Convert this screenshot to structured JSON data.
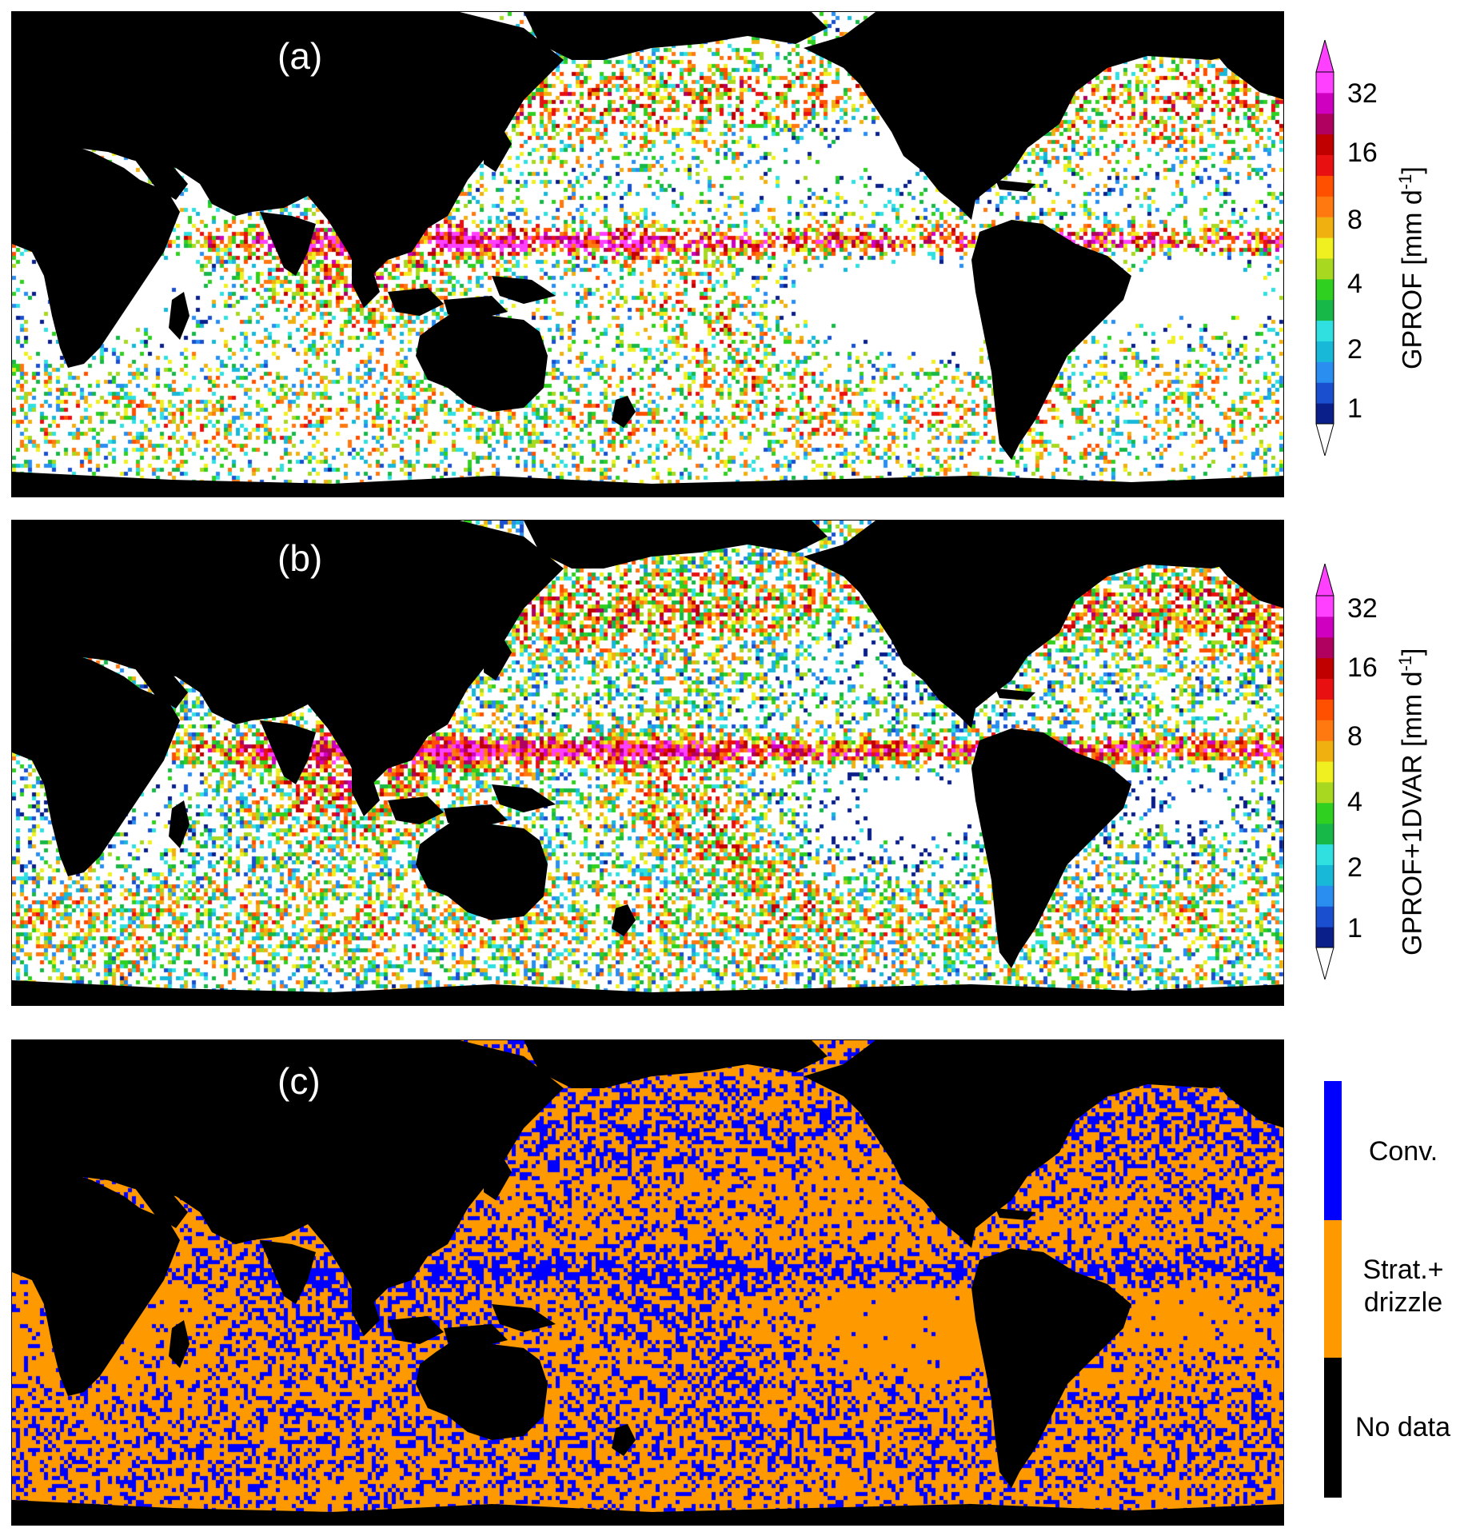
{
  "panels": [
    {
      "label": "(a)",
      "colorbar_title": "GPROF [mm d",
      "colorbar_title_sup": "-1",
      "colorbar_title_end": "]",
      "colorbar_ticks": [
        "1",
        "2",
        "4",
        "8",
        "16",
        "32"
      ],
      "type": "continuous"
    },
    {
      "label": "(b)",
      "colorbar_title": "GPROF+1DVAR [mm d",
      "colorbar_title_sup": "-1",
      "colorbar_title_end": "]",
      "colorbar_ticks": [
        "1",
        "2",
        "4",
        "8",
        "16",
        "32"
      ],
      "type": "continuous"
    },
    {
      "label": "(c)",
      "type": "categorical",
      "categories": [
        {
          "label": "Conv.",
          "color": "#0000ff"
        },
        {
          "label": "Strat.+ drizzle",
          "label_line1": "Strat.+",
          "label_line2": "drizzle",
          "color": "#ff9900"
        },
        {
          "label": "No data",
          "color": "#000000"
        }
      ]
    }
  ],
  "colors": {
    "land": "#000000",
    "no_rain": "#ffffff",
    "ocean_stratiform": "#ff9900",
    "convective": "#0000ff",
    "colormap": [
      "#0a1f8a",
      "#1a4fd0",
      "#2a8ef0",
      "#18b8d8",
      "#30e0e0",
      "#18b848",
      "#30d020",
      "#a8d820",
      "#f0f020",
      "#f0b010",
      "#ff7810",
      "#ff5000",
      "#e81010",
      "#c00000",
      "#b00060",
      "#d000c0",
      "#ff40ff"
    ]
  }
}
